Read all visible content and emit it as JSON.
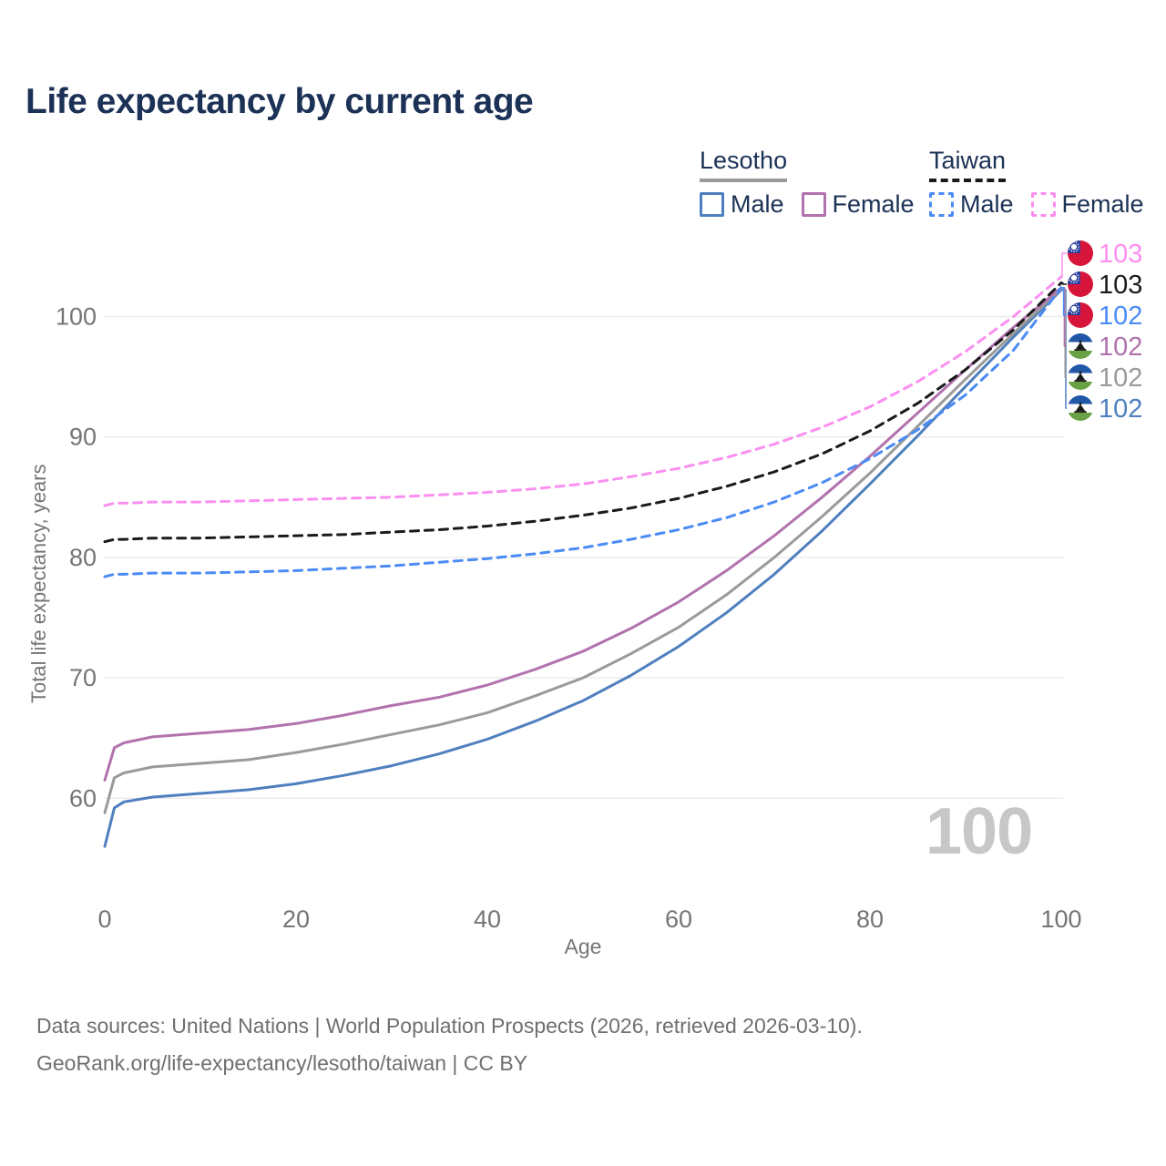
{
  "title": "Life expectancy by current age",
  "legend": {
    "groups": [
      {
        "name": "Lesotho",
        "underline_style": "solid",
        "underline_color": "#9a9a9a",
        "items": [
          {
            "label": "Male",
            "color": "#4f7fbe",
            "dash": false
          },
          {
            "label": "Female",
            "color": "#b172ae",
            "dash": false
          }
        ]
      },
      {
        "name": "Taiwan",
        "underline_style": "dashed",
        "underline_color": "#1a1a1a",
        "items": [
          {
            "label": "Male",
            "color": "#4b8bf5",
            "dash": true
          },
          {
            "label": "Female",
            "color": "#fb8ff1",
            "dash": true
          }
        ]
      }
    ]
  },
  "chart_data": {
    "type": "line",
    "title": "Life expectancy by current age",
    "xlabel": "Age",
    "ylabel": "Total life expectancy, years",
    "x_ticks": [
      0,
      20,
      40,
      60,
      80,
      100
    ],
    "y_ticks": [
      60,
      70,
      80,
      90,
      100
    ],
    "xlim": [
      0,
      100
    ],
    "ylim": [
      55,
      104
    ],
    "grid": "horizontal",
    "grid_color": "#ececec",
    "tick_color": "#757575",
    "hover_age_watermark": "100",
    "ages": [
      0,
      1,
      2,
      5,
      10,
      15,
      20,
      25,
      30,
      35,
      40,
      45,
      50,
      55,
      60,
      65,
      70,
      75,
      80,
      85,
      90,
      95,
      100
    ],
    "series": [
      {
        "name": "Lesotho Male",
        "country": "Lesotho",
        "sex": "Male",
        "color": "#4f7fbe",
        "dash": false,
        "flag": "lesotho",
        "end_label": "102",
        "label_row": 5,
        "values": [
          56.0,
          59.2,
          59.7,
          60.1,
          60.4,
          60.7,
          61.2,
          61.9,
          62.7,
          63.7,
          64.9,
          66.4,
          68.1,
          70.2,
          72.6,
          75.4,
          78.6,
          82.2,
          86.1,
          90.1,
          94.2,
          98.3,
          102.2
        ]
      },
      {
        "name": "Lesotho Total",
        "country": "Lesotho",
        "sex": "Both",
        "color": "#9a9a9a",
        "dash": false,
        "flag": "lesotho",
        "end_label": "102",
        "label_row": 4,
        "values": [
          58.8,
          61.7,
          62.1,
          62.6,
          62.9,
          63.2,
          63.8,
          64.5,
          65.3,
          66.1,
          67.1,
          68.5,
          70.0,
          72.0,
          74.2,
          76.9,
          80.0,
          83.4,
          87.0,
          90.9,
          94.8,
          98.6,
          102.3
        ]
      },
      {
        "name": "Lesotho Female",
        "country": "Lesotho",
        "sex": "Female",
        "color": "#b172ae",
        "dash": false,
        "flag": "lesotho",
        "end_label": "102",
        "label_row": 3,
        "values": [
          61.5,
          64.2,
          64.6,
          65.1,
          65.4,
          65.7,
          66.2,
          66.9,
          67.7,
          68.4,
          69.4,
          70.7,
          72.2,
          74.1,
          76.3,
          78.9,
          81.8,
          85.0,
          88.4,
          92.0,
          95.6,
          99.1,
          102.4
        ]
      },
      {
        "name": "Taiwan Male",
        "country": "Taiwan",
        "sex": "Male",
        "color": "#4b8bf5",
        "dash": true,
        "flag": "taiwan",
        "end_label": "102",
        "label_row": 2,
        "values": [
          78.4,
          78.6,
          78.6,
          78.7,
          78.7,
          78.8,
          78.9,
          79.1,
          79.3,
          79.6,
          79.9,
          80.3,
          80.8,
          81.5,
          82.3,
          83.3,
          84.6,
          86.2,
          88.2,
          90.6,
          93.5,
          97.2,
          102.4
        ]
      },
      {
        "name": "Taiwan Total",
        "country": "Taiwan",
        "sex": "Both",
        "color": "#1a1a1a",
        "dash": true,
        "flag": "taiwan",
        "end_label": "103",
        "label_row": 1,
        "values": [
          81.3,
          81.5,
          81.5,
          81.6,
          81.6,
          81.7,
          81.8,
          81.9,
          82.1,
          82.3,
          82.6,
          83.0,
          83.5,
          84.1,
          84.9,
          85.9,
          87.1,
          88.6,
          90.5,
          92.8,
          95.6,
          98.9,
          102.8
        ]
      },
      {
        "name": "Taiwan Female",
        "country": "Taiwan",
        "sex": "Female",
        "color": "#fb8ff1",
        "dash": true,
        "flag": "taiwan",
        "end_label": "103",
        "label_row": 0,
        "values": [
          84.3,
          84.5,
          84.5,
          84.6,
          84.6,
          84.7,
          84.8,
          84.9,
          85.0,
          85.2,
          85.4,
          85.7,
          86.1,
          86.7,
          87.4,
          88.3,
          89.4,
          90.8,
          92.5,
          94.6,
          97.1,
          100.0,
          103.3
        ]
      }
    ],
    "flag_colors": {
      "taiwan_red": "#d7153a",
      "taiwan_blue": "#2a3f9d",
      "lesotho_blue": "#2157a7",
      "lesotho_white": "#ffffff",
      "lesotho_green": "#68a244",
      "lesotho_hat": "#1a1a1a"
    }
  },
  "footer": {
    "line1": "Data sources: United Nations | World Population Prospects (2026, retrieved 2026-03-10).",
    "line2": "GeoRank.org/life-expectancy/lesotho/taiwan | CC BY"
  }
}
